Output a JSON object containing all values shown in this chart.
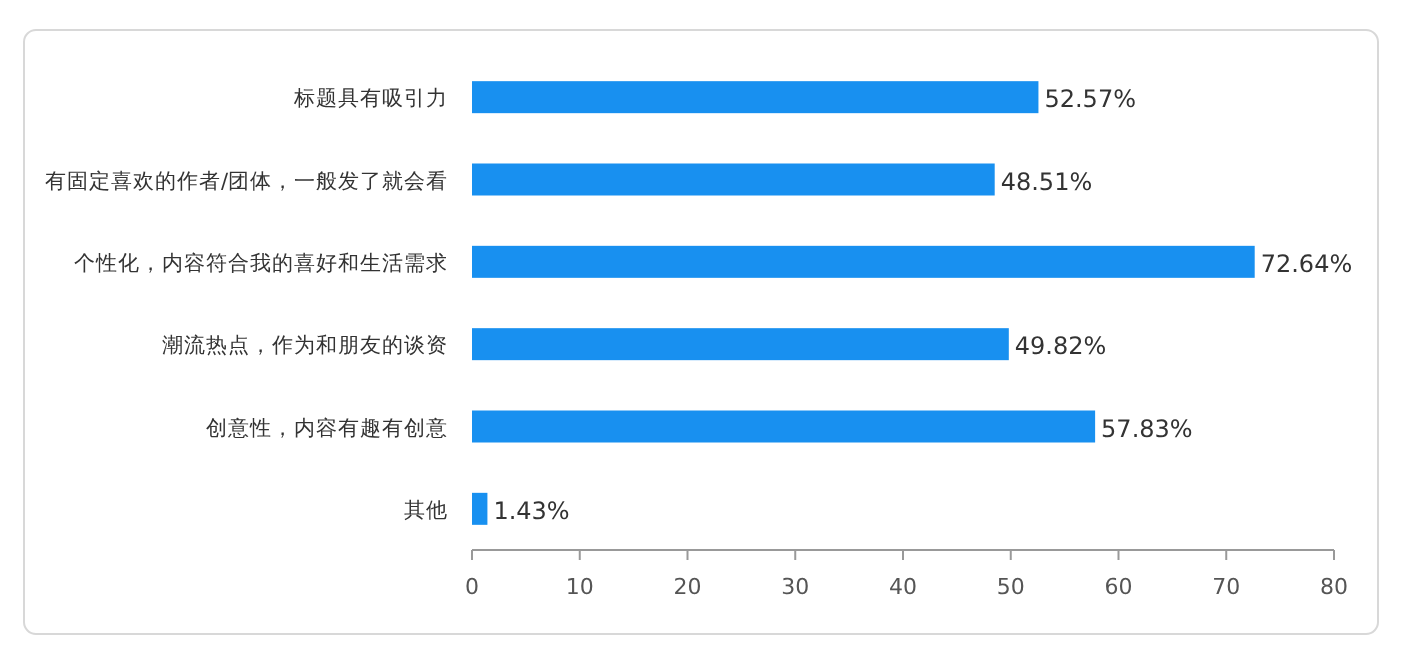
{
  "chart_data": {
    "type": "bar",
    "orientation": "horizontal",
    "categories": [
      "标题具有吸引力",
      "有固定喜欢的作者/团体，一般发了就会看",
      "个性化，内容符合我的喜好和生活需求",
      "潮流热点，作为和朋友的谈资",
      "创意性，内容有趣有创意",
      "其他"
    ],
    "values": [
      52.57,
      48.51,
      72.64,
      49.82,
      57.83,
      1.43
    ],
    "value_labels": [
      "52.57%",
      "48.51%",
      "72.64%",
      "49.82%",
      "57.83%",
      "1.43%"
    ],
    "color": "#1890f0",
    "xlim": [
      0,
      80
    ],
    "xticks": [
      0,
      10,
      20,
      30,
      40,
      50,
      60,
      70,
      80
    ]
  }
}
